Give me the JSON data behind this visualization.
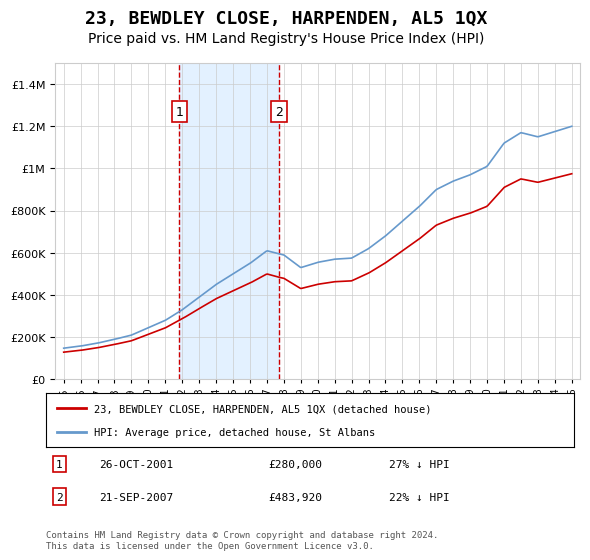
{
  "title": "23, BEWDLEY CLOSE, HARPENDEN, AL5 1QX",
  "subtitle": "Price paid vs. HM Land Registry's House Price Index (HPI)",
  "title_fontsize": 13,
  "subtitle_fontsize": 10,
  "sale1_date": "26-OCT-2001",
  "sale1_price": 280000,
  "sale1_label": "1",
  "sale1_pct": "27% ↓ HPI",
  "sale1_year": 2001.82,
  "sale2_date": "21-SEP-2007",
  "sale2_price": 483920,
  "sale2_label": "2",
  "sale2_pct": "22% ↓ HPI",
  "sale2_year": 2007.72,
  "legend_line1": "23, BEWDLEY CLOSE, HARPENDEN, AL5 1QX (detached house)",
  "legend_line2": "HPI: Average price, detached house, St Albans",
  "footer": "Contains HM Land Registry data © Crown copyright and database right 2024.\nThis data is licensed under the Open Government Licence v3.0.",
  "red_color": "#cc0000",
  "blue_color": "#6699cc",
  "shade_color": "#ddeeff",
  "ylim": [
    0,
    1500000
  ],
  "xlim_start": 1994.5,
  "xlim_end": 2025.5,
  "background_color": "#ffffff",
  "grid_color": "#cccccc",
  "years_hpi": [
    1995,
    1996,
    1997,
    1998,
    1999,
    2000,
    2001,
    2002,
    2003,
    2004,
    2005,
    2006,
    2007,
    2008,
    2009,
    2010,
    2011,
    2012,
    2013,
    2014,
    2015,
    2016,
    2017,
    2018,
    2019,
    2020,
    2021,
    2022,
    2023,
    2024,
    2025
  ],
  "hpi_values": [
    148000,
    158000,
    172000,
    190000,
    210000,
    245000,
    280000,
    330000,
    390000,
    450000,
    500000,
    550000,
    610000,
    590000,
    530000,
    555000,
    570000,
    575000,
    620000,
    680000,
    750000,
    820000,
    900000,
    940000,
    970000,
    1010000,
    1120000,
    1170000,
    1150000,
    1175000,
    1200000
  ]
}
